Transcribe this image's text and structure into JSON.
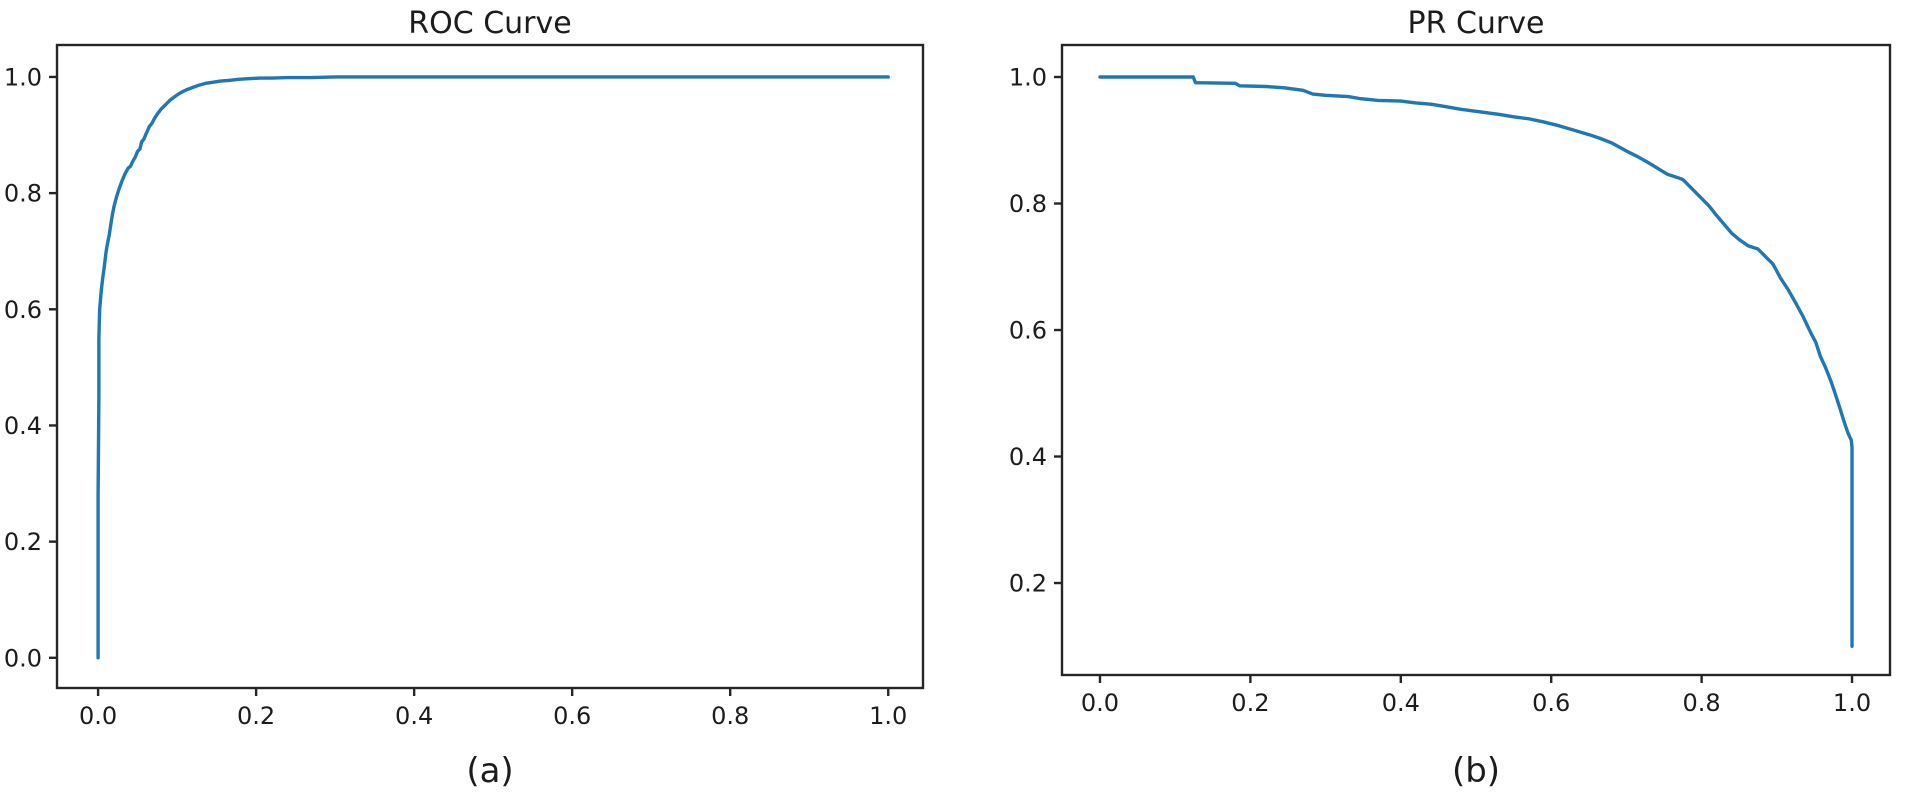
{
  "figure": {
    "background": "#ffffff",
    "text_color": "#1c1c1c",
    "spine_color": "#262626"
  },
  "chart_data": [
    {
      "type": "line",
      "name": "roc",
      "title": "ROC Curve",
      "caption": "(a)",
      "line_color": "#1f77b4",
      "grid": false,
      "legend": null,
      "x_ticks": [
        0.0,
        0.2,
        0.4,
        0.6,
        0.8,
        1.0
      ],
      "x_tick_labels": [
        "0.0",
        "0.2",
        "0.4",
        "0.6",
        "0.8",
        "1.0"
      ],
      "y_ticks": [
        0.0,
        0.2,
        0.4,
        0.6,
        0.8,
        1.0
      ],
      "y_tick_labels": [
        "0.0",
        "0.2",
        "0.4",
        "0.6",
        "0.8",
        "1.0"
      ],
      "xlim": [
        -0.052,
        1.044
      ],
      "ylim": [
        -0.052,
        1.055
      ],
      "series": [
        {
          "name": "ROC",
          "points": [
            [
              0.0,
              0.0
            ],
            [
              0.0,
              0.28
            ],
            [
              0.001,
              0.45
            ],
            [
              0.001,
              0.55
            ],
            [
              0.002,
              0.6
            ],
            [
              0.004,
              0.632
            ],
            [
              0.006,
              0.655
            ],
            [
              0.008,
              0.675
            ],
            [
              0.01,
              0.698
            ],
            [
              0.012,
              0.714
            ],
            [
              0.014,
              0.727
            ],
            [
              0.016,
              0.745
            ],
            [
              0.018,
              0.762
            ],
            [
              0.02,
              0.776
            ],
            [
              0.023,
              0.792
            ],
            [
              0.026,
              0.805
            ],
            [
              0.03,
              0.82
            ],
            [
              0.034,
              0.833
            ],
            [
              0.038,
              0.843
            ],
            [
              0.041,
              0.846
            ],
            [
              0.044,
              0.855
            ],
            [
              0.047,
              0.862
            ],
            [
              0.05,
              0.872
            ],
            [
              0.053,
              0.876
            ],
            [
              0.055,
              0.888
            ],
            [
              0.058,
              0.893
            ],
            [
              0.061,
              0.903
            ],
            [
              0.065,
              0.915
            ],
            [
              0.068,
              0.92
            ],
            [
              0.072,
              0.93
            ],
            [
              0.076,
              0.938
            ],
            [
              0.08,
              0.945
            ],
            [
              0.086,
              0.953
            ],
            [
              0.091,
              0.96
            ],
            [
              0.096,
              0.965
            ],
            [
              0.1,
              0.969
            ],
            [
              0.106,
              0.974
            ],
            [
              0.112,
              0.978
            ],
            [
              0.12,
              0.982
            ],
            [
              0.128,
              0.986
            ],
            [
              0.136,
              0.989
            ],
            [
              0.146,
              0.991
            ],
            [
              0.155,
              0.993
            ],
            [
              0.165,
              0.994
            ],
            [
              0.178,
              0.996
            ],
            [
              0.19,
              0.997
            ],
            [
              0.205,
              0.998
            ],
            [
              0.22,
              0.998
            ],
            [
              0.24,
              0.999
            ],
            [
              0.27,
              0.999
            ],
            [
              0.3,
              1.0
            ],
            [
              1.0,
              1.0
            ]
          ]
        }
      ]
    },
    {
      "type": "line",
      "name": "pr",
      "title": "PR Curve",
      "caption": "(b)",
      "line_color": "#1f77b4",
      "grid": false,
      "legend": null,
      "x_ticks": [
        0.0,
        0.2,
        0.4,
        0.6,
        0.8,
        1.0
      ],
      "x_tick_labels": [
        "0.0",
        "0.2",
        "0.4",
        "0.6",
        "0.8",
        "1.0"
      ],
      "y_ticks": [
        0.2,
        0.4,
        0.6,
        0.8,
        1.0
      ],
      "y_tick_labels": [
        "0.2",
        "0.4",
        "0.6",
        "0.8",
        "1.0"
      ],
      "xlim": [
        -0.0505,
        1.0505
      ],
      "ylim": [
        0.0546,
        1.0506
      ],
      "series": [
        {
          "name": "PR",
          "points": [
            [
              0.0,
              1.0
            ],
            [
              0.124,
              1.0
            ],
            [
              0.127,
              0.991
            ],
            [
              0.18,
              0.99
            ],
            [
              0.186,
              0.986
            ],
            [
              0.22,
              0.985
            ],
            [
              0.245,
              0.983
            ],
            [
              0.27,
              0.979
            ],
            [
              0.283,
              0.973
            ],
            [
              0.3,
              0.971
            ],
            [
              0.33,
              0.969
            ],
            [
              0.345,
              0.966
            ],
            [
              0.37,
              0.963
            ],
            [
              0.4,
              0.962
            ],
            [
              0.42,
              0.959
            ],
            [
              0.44,
              0.957
            ],
            [
              0.46,
              0.953
            ],
            [
              0.48,
              0.949
            ],
            [
              0.505,
              0.945
            ],
            [
              0.53,
              0.941
            ],
            [
              0.55,
              0.937
            ],
            [
              0.57,
              0.934
            ],
            [
              0.59,
              0.929
            ],
            [
              0.61,
              0.923
            ],
            [
              0.63,
              0.916
            ],
            [
              0.65,
              0.909
            ],
            [
              0.665,
              0.903
            ],
            [
              0.68,
              0.896
            ],
            [
              0.7,
              0.883
            ],
            [
              0.715,
              0.874
            ],
            [
              0.73,
              0.864
            ],
            [
              0.745,
              0.853
            ],
            [
              0.755,
              0.846
            ],
            [
              0.768,
              0.841
            ],
            [
              0.775,
              0.838
            ],
            [
              0.785,
              0.826
            ],
            [
              0.8,
              0.808
            ],
            [
              0.81,
              0.796
            ],
            [
              0.82,
              0.781
            ],
            [
              0.83,
              0.767
            ],
            [
              0.84,
              0.753
            ],
            [
              0.85,
              0.743
            ],
            [
              0.862,
              0.733
            ],
            [
              0.875,
              0.728
            ],
            [
              0.885,
              0.716
            ],
            [
              0.895,
              0.704
            ],
            [
              0.905,
              0.682
            ],
            [
              0.915,
              0.664
            ],
            [
              0.925,
              0.643
            ],
            [
              0.935,
              0.621
            ],
            [
              0.945,
              0.596
            ],
            [
              0.952,
              0.58
            ],
            [
              0.958,
              0.558
            ],
            [
              0.965,
              0.54
            ],
            [
              0.972,
              0.519
            ],
            [
              0.978,
              0.498
            ],
            [
              0.984,
              0.476
            ],
            [
              0.99,
              0.453
            ],
            [
              0.995,
              0.436
            ],
            [
              0.999,
              0.426
            ],
            [
              1.0,
              0.415
            ],
            [
              1.0,
              0.1
            ]
          ]
        }
      ]
    }
  ]
}
